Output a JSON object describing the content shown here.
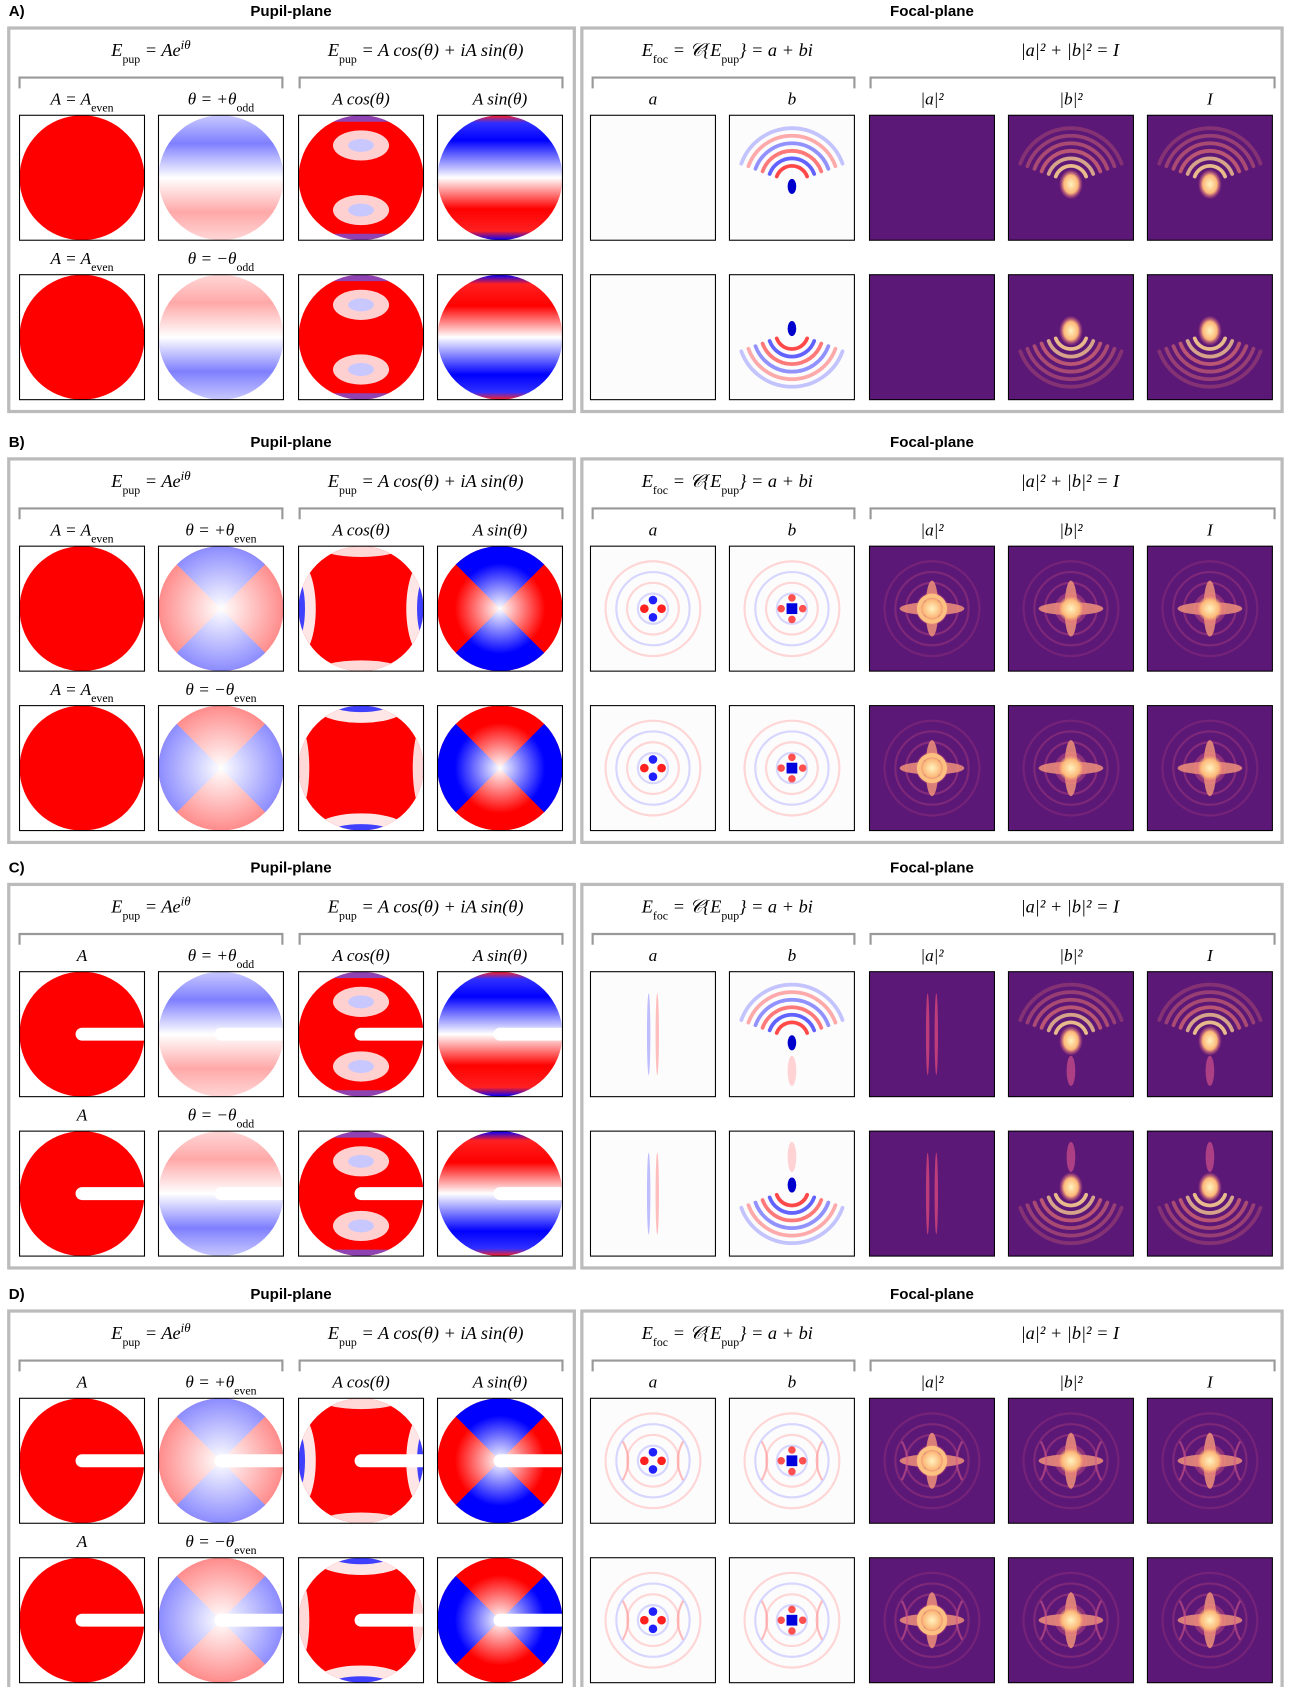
{
  "panels": [
    {
      "label": "A)",
      "pupil_title": "Pupil-plane",
      "focal_title": "Focal-plane",
      "equations": [
        [
          "E",
          "pup",
          " = Ae",
          "iθ"
        ],
        [
          "E",
          "pup",
          " = A cos(θ) + iA sin(θ)"
        ],
        [
          "E",
          "foc",
          " = 𝒞{E",
          "pup",
          "} = a + bi"
        ],
        [
          "|a|² + |b|² = I"
        ]
      ],
      "row_labels": [
        [
          [
            "A = A",
            "even"
          ],
          [
            "θ = +θ",
            "odd"
          ]
        ],
        [
          [
            "A = A",
            "even"
          ],
          [
            "θ = −θ",
            "odd"
          ]
        ]
      ],
      "columns": [
        "A cos(θ)",
        "A sin(θ)",
        "a",
        "b",
        "|a|²",
        "|b|²",
        "I"
      ]
    },
    {
      "label": "B)",
      "pupil_title": "Pupil-plane",
      "focal_title": "Focal-plane",
      "equations": [
        [
          "E",
          "pup",
          " = Ae",
          "iθ"
        ],
        [
          "E",
          "pup",
          " = A cos(θ) + iA sin(θ)"
        ],
        [
          "E",
          "foc",
          " = 𝒞{E",
          "pup",
          "} = a + bi"
        ],
        [
          "|a|² + |b|² = I"
        ]
      ],
      "row_labels": [
        [
          [
            "A = A",
            "even"
          ],
          [
            "θ = +θ",
            "even"
          ]
        ],
        [
          [
            "A = A",
            "even"
          ],
          [
            "θ = −θ",
            "even"
          ]
        ]
      ],
      "columns": [
        "A cos(θ)",
        "A sin(θ)",
        "a",
        "b",
        "|a|²",
        "|b|²",
        "I"
      ]
    },
    {
      "label": "C)",
      "pupil_title": "Pupil-plane",
      "focal_title": "Focal-plane",
      "equations": [
        [
          "E",
          "pup",
          " = Ae",
          "iθ"
        ],
        [
          "E",
          "pup",
          " = A cos(θ) + iA sin(θ)"
        ],
        [
          "E",
          "foc",
          " = 𝒞{E",
          "pup",
          "} = a + bi"
        ],
        [
          "|a|² + |b|² = I"
        ]
      ],
      "row_labels": [
        [
          [
            "A"
          ],
          [
            "θ = +θ",
            "odd"
          ]
        ],
        [
          [
            "A"
          ],
          [
            "θ = −θ",
            "odd"
          ]
        ]
      ],
      "columns": [
        "A cos(θ)",
        "A sin(θ)",
        "a",
        "b",
        "|a|²",
        "|b|²",
        "I"
      ]
    },
    {
      "label": "D)",
      "pupil_title": "Pupil-plane",
      "focal_title": "Focal-plane",
      "equations": [
        [
          "E",
          "pup",
          " = Ae",
          "iθ"
        ],
        [
          "E",
          "pup",
          " = A cos(θ) + iA sin(θ)"
        ],
        [
          "E",
          "foc",
          " = 𝒞{E",
          "pup",
          "} = a + bi"
        ],
        [
          "|a|² + |b|² = I"
        ]
      ],
      "row_labels": [
        [
          [
            "A"
          ],
          [
            "θ = +θ",
            "even"
          ]
        ],
        [
          [
            "A"
          ],
          [
            "θ = −θ",
            "even"
          ]
        ]
      ],
      "columns": [
        "A cos(θ)",
        "A sin(θ)",
        "a",
        "b",
        "|a|²",
        "|b|²",
        "I"
      ]
    }
  ]
}
